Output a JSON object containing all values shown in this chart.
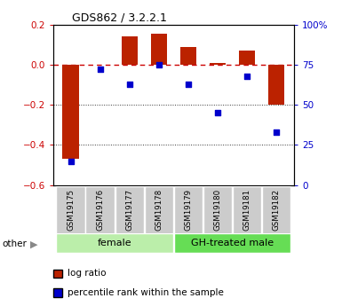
{
  "title": "GDS862 / 3.2.2.1",
  "samples": [
    "GSM19175",
    "GSM19176",
    "GSM19177",
    "GSM19178",
    "GSM19179",
    "GSM19180",
    "GSM19181",
    "GSM19182"
  ],
  "log_ratio": [
    -0.47,
    0.0,
    0.14,
    0.155,
    0.09,
    0.01,
    0.07,
    -0.2
  ],
  "percentile": [
    15,
    72,
    63,
    75,
    63,
    45,
    68,
    33
  ],
  "groups": [
    {
      "label": "female",
      "indices": [
        0,
        1,
        2,
        3
      ],
      "color": "#bbeeaa"
    },
    {
      "label": "GH-treated male",
      "indices": [
        4,
        5,
        6,
        7
      ],
      "color": "#66dd55"
    }
  ],
  "ylim_left": [
    -0.6,
    0.2
  ],
  "ylim_right": [
    0,
    100
  ],
  "bar_color": "#bb2200",
  "dot_color": "#0000cc",
  "ref_line_color": "#cc0000",
  "grid_color": "#333333",
  "bar_width": 0.55,
  "gray_color": "#cccccc",
  "legend_items": [
    {
      "label": "log ratio",
      "color": "#bb2200"
    },
    {
      "label": "percentile rank within the sample",
      "color": "#0000cc"
    }
  ]
}
